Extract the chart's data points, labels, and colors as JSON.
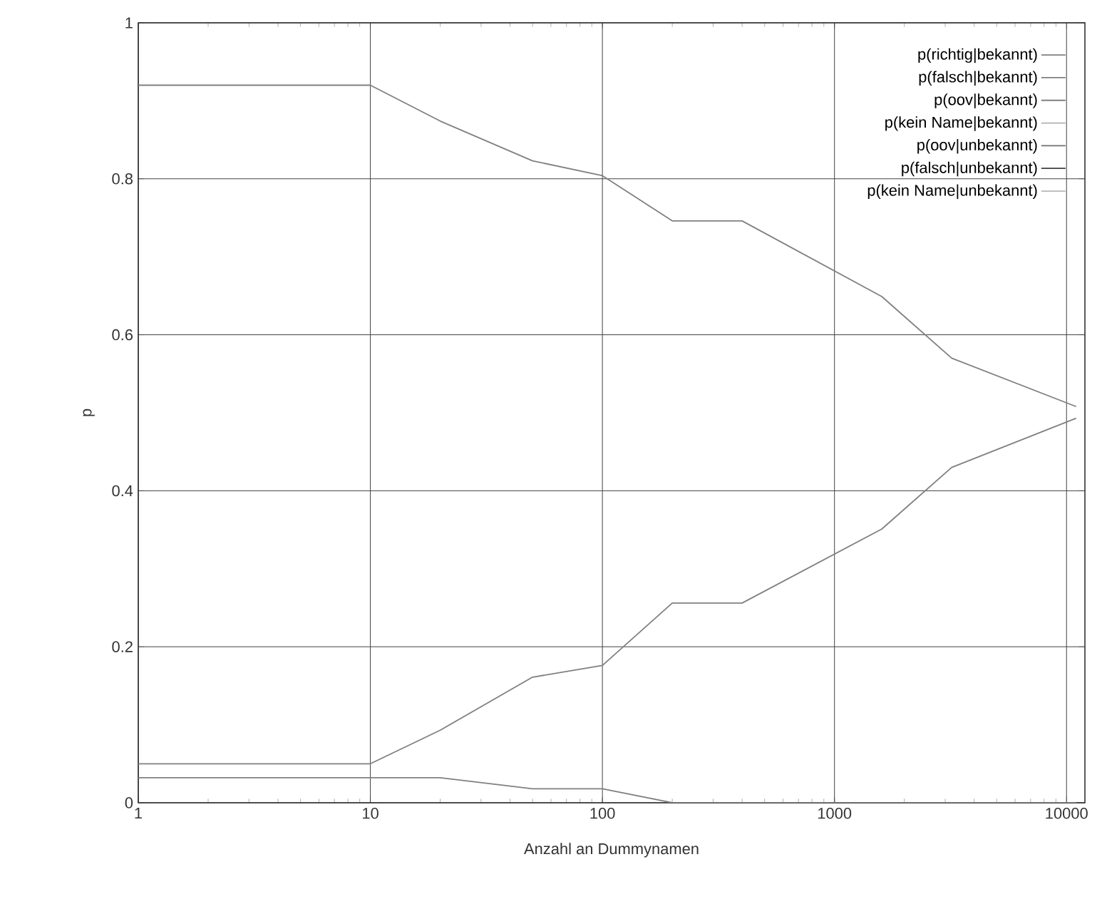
{
  "chart_data": {
    "type": "line",
    "xlabel": "Anzahl an Dummynamen",
    "ylabel": "p",
    "x": [
      1,
      10,
      20,
      50,
      100,
      200,
      400,
      1600,
      3200,
      11000
    ],
    "series": [
      {
        "name": "p(richtig|bekannt)",
        "color": "#808080",
        "values": [
          0.92,
          0.92,
          0.874,
          0.823,
          0.804,
          0.746,
          0.746,
          0.649,
          0.57,
          0.508
        ]
      },
      {
        "name": "p(falsch|bekannt)",
        "color": "#808080",
        "values": [
          0.05,
          0.05,
          0.093,
          0.161,
          0.176,
          0.256,
          0.256,
          0.351,
          0.43,
          0.493
        ]
      },
      {
        "name": "p(oov|bekannt)",
        "color": "#808080",
        "values": [
          0.032,
          0.032,
          0.032,
          0.018,
          0.018,
          0,
          0,
          0,
          0,
          0
        ]
      },
      {
        "name": "p(kein Name|bekannt)",
        "color": "#b0b0b0",
        "values": [
          null,
          null,
          null,
          null,
          null,
          null,
          null,
          null,
          null,
          null
        ]
      },
      {
        "name": "p(oov|unbekannt)",
        "color": "#707070",
        "values": [
          null,
          null,
          null,
          null,
          null,
          null,
          null,
          null,
          null,
          null
        ]
      },
      {
        "name": "p(falsch|unbekannt)",
        "color": "#404040",
        "values": [
          null,
          null,
          null,
          null,
          null,
          null,
          null,
          null,
          null,
          null
        ]
      },
      {
        "name": "p(kein Name|unbekannt)",
        "color": "#b8b8b8",
        "values": [
          null,
          null,
          null,
          null,
          null,
          null,
          null,
          null,
          null,
          null
        ]
      }
    ],
    "log": "x",
    "xlim": [
      1,
      12000
    ],
    "ylim": [
      0,
      1
    ],
    "xticks": [
      1,
      10,
      100,
      1000,
      10000
    ],
    "yticks": [
      0,
      0.2,
      0.4,
      0.6,
      0.8,
      1
    ],
    "grid": true,
    "legend": "top right",
    "marker": "none",
    "line_style": "solid"
  }
}
